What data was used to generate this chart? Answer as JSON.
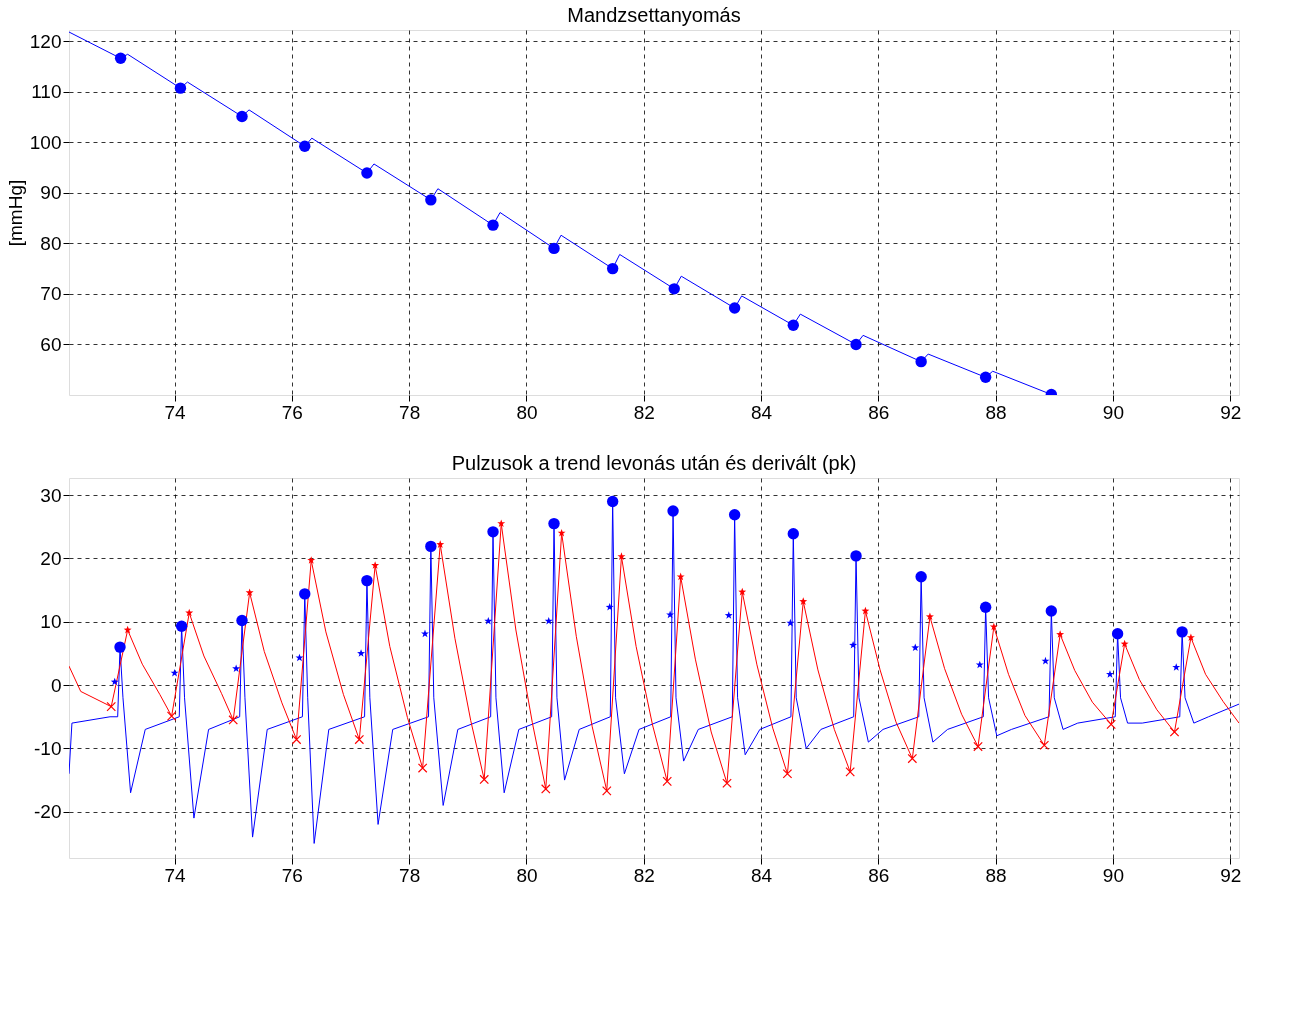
{
  "chart_data": [
    {
      "type": "line",
      "title": "Mandzsettanyomás",
      "ylabel": "[mmHg]",
      "xlim": [
        72.2,
        92.15
      ],
      "ylim": [
        50,
        122.2
      ],
      "xticks": [
        74,
        76,
        78,
        80,
        82,
        84,
        86,
        88,
        90,
        92
      ],
      "yticks": [
        60,
        70,
        80,
        90,
        100,
        110,
        120
      ],
      "grid": true,
      "series": [
        {
          "type": "line",
          "marker": "none",
          "color": "#0000ff",
          "x": [
            72.2,
            73.08,
            73.2,
            74.1,
            74.22,
            75.15,
            75.27,
            76.22,
            76.34,
            77.28,
            77.4,
            78.37,
            78.49,
            79.43,
            79.55,
            80.47,
            80.59,
            81.47,
            81.59,
            82.52,
            82.64,
            83.55,
            83.67,
            84.55,
            84.67,
            85.62,
            85.74,
            86.73,
            86.85,
            87.83,
            87.95,
            88.95
          ],
          "values": [
            121.8,
            116.6,
            117.4,
            110.7,
            111.9,
            105.1,
            106.4,
            99.2,
            100.8,
            93.9,
            95.7,
            88.6,
            90.8,
            83.6,
            86.1,
            79.0,
            81.6,
            75.0,
            77.8,
            71.0,
            73.5,
            67.2,
            69.6,
            63.8,
            66.0,
            60.0,
            61.8,
            56.6,
            58.1,
            53.5,
            54.7,
            50.1
          ]
        },
        {
          "type": "scatter",
          "marker": "circle",
          "color": "#0000ff",
          "x": [
            73.08,
            74.1,
            75.15,
            76.22,
            77.28,
            78.37,
            79.43,
            80.47,
            81.47,
            82.52,
            83.55,
            84.55,
            85.62,
            86.73,
            87.83,
            88.95
          ],
          "values": [
            116.6,
            110.7,
            105.1,
            99.2,
            93.9,
            88.6,
            83.6,
            79.0,
            75.0,
            71.0,
            67.2,
            63.8,
            60.0,
            56.6,
            53.5,
            50.1
          ]
        }
      ]
    },
    {
      "type": "line",
      "title": "Pulzusok a trend levonás után és derivált (pk)",
      "xlim": [
        72.2,
        92.15
      ],
      "ylim": [
        -27.3,
        32.7
      ],
      "xticks": [
        74,
        76,
        78,
        80,
        82,
        84,
        86,
        88,
        90,
        92
      ],
      "yticks": [
        -20,
        -10,
        0,
        10,
        20,
        30
      ],
      "grid": true,
      "series": [
        {
          "type": "line",
          "marker": "none",
          "color": "#0000ff",
          "x": [
            72.2,
            72.25,
            72.9,
            73.03,
            73.07,
            73.12,
            73.25,
            73.5,
            74.08,
            74.12,
            74.17,
            74.33,
            74.58,
            75.11,
            75.15,
            75.2,
            75.33,
            75.58,
            76.18,
            76.22,
            76.27,
            76.38,
            76.63,
            77.24,
            77.28,
            77.33,
            77.47,
            77.72,
            78.33,
            78.37,
            78.42,
            78.58,
            78.83,
            79.39,
            79.43,
            79.48,
            79.62,
            79.87,
            80.43,
            80.47,
            80.52,
            80.65,
            80.9,
            81.43,
            81.47,
            81.52,
            81.67,
            81.92,
            82.46,
            82.5,
            82.55,
            82.68,
            82.93,
            83.51,
            83.55,
            83.6,
            83.73,
            83.98,
            84.51,
            84.55,
            84.6,
            84.77,
            85.02,
            85.58,
            85.62,
            85.67,
            85.83,
            86.08,
            86.69,
            86.73,
            86.78,
            86.93,
            87.18,
            87.79,
            87.83,
            87.88,
            88.02,
            88.27,
            88.91,
            88.95,
            89.0,
            89.15,
            89.4,
            90.04,
            90.08,
            90.13,
            90.25,
            90.5,
            91.14,
            91.18,
            91.23,
            91.38,
            91.63,
            92.15
          ],
          "values": [
            -14,
            -6,
            -5,
            -5,
            6.0,
            -2,
            -17,
            -7,
            -5,
            9.3,
            -2,
            -21,
            -7,
            -5,
            10.2,
            -2,
            -24,
            -7,
            -5,
            14.4,
            -2,
            -25,
            -7,
            -5,
            16.5,
            -2,
            -22,
            -7,
            -5,
            21.9,
            -2,
            -19,
            -7,
            -5,
            24.2,
            -2,
            -17,
            -7,
            -5,
            25.5,
            -2,
            -15,
            -7,
            -5,
            29.0,
            -2,
            -14,
            -7,
            -5,
            27.5,
            -2,
            -12,
            -7,
            -5,
            26.9,
            -2,
            -11,
            -7,
            -5,
            23.9,
            -2,
            -10,
            -7,
            -5,
            20.4,
            -2,
            -9,
            -7,
            -5,
            17.1,
            -2,
            -9,
            -7,
            -5,
            12.3,
            -2,
            -8,
            -7,
            -5,
            11.7,
            -2,
            -7,
            -6,
            -5,
            8.1,
            -2,
            -6,
            -6,
            -5,
            8.4,
            -2,
            -6,
            -5,
            -3
          ]
        },
        {
          "type": "line",
          "marker": "none",
          "color": "#ff0000",
          "x": [
            72.2,
            72.4,
            72.92,
            73.2,
            73.45,
            73.75,
            73.95,
            74.25,
            74.5,
            74.8,
            75.0,
            75.28,
            75.53,
            75.83,
            76.08,
            76.33,
            76.58,
            76.88,
            77.15,
            77.42,
            77.67,
            77.97,
            78.23,
            78.53,
            78.78,
            79.05,
            79.28,
            79.57,
            79.82,
            80.1,
            80.33,
            80.6,
            80.85,
            81.12,
            81.37,
            81.62,
            81.87,
            82.15,
            82.4,
            82.63,
            82.88,
            83.15,
            83.42,
            83.68,
            83.93,
            84.2,
            84.45,
            84.72,
            84.97,
            85.25,
            85.52,
            85.78,
            86.03,
            86.3,
            86.58,
            86.88,
            87.13,
            87.42,
            87.7,
            87.97,
            88.22,
            88.5,
            88.83,
            89.1,
            89.35,
            89.65,
            89.97,
            90.2,
            90.45,
            90.75,
            91.05,
            91.33,
            91.58,
            91.88,
            92.15
          ],
          "values": [
            3,
            -1,
            -3.4,
            8.7,
            3.3,
            -1.5,
            -4.9,
            11.4,
            4.6,
            -1.3,
            -5.5,
            14.6,
            5.3,
            -2.8,
            -8.6,
            19.7,
            8.4,
            -1.5,
            -8.6,
            18.9,
            6.1,
            -5.1,
            -13.1,
            22.2,
            7.4,
            -5.6,
            -14.9,
            25.5,
            8.7,
            -5.9,
            -16.4,
            24.0,
            7.7,
            -6.5,
            -16.7,
            20.3,
            6.1,
            -6.3,
            -15.2,
            17.1,
            4.1,
            -7.4,
            -15.5,
            14.7,
            3.2,
            -6.8,
            -14.0,
            13.2,
            2.4,
            -7.0,
            -13.7,
            11.7,
            2.4,
            -5.8,
            -11.6,
            10.8,
            2.6,
            -4.6,
            -9.7,
            9.2,
            1.7,
            -4.8,
            -9.5,
            8.0,
            2.3,
            -2.7,
            -6.2,
            6.5,
            0.9,
            -3.9,
            -7.4,
            7.5,
            1.7,
            -2.6,
            -6
          ]
        },
        {
          "type": "scatter",
          "marker": "circle",
          "color": "#0000ff",
          "x": [
            73.07,
            74.12,
            75.15,
            76.22,
            77.28,
            78.37,
            79.43,
            80.47,
            81.47,
            82.5,
            83.55,
            84.55,
            85.62,
            86.73,
            87.83,
            88.95,
            90.08,
            91.18
          ],
          "values": [
            6.0,
            9.3,
            10.2,
            14.4,
            16.5,
            21.9,
            24.2,
            25.5,
            29.0,
            27.5,
            26.9,
            23.9,
            20.4,
            17.1,
            12.3,
            11.7,
            8.1,
            8.4
          ]
        },
        {
          "type": "scatter",
          "marker": "star",
          "color": "#ff0000",
          "x": [
            73.2,
            74.25,
            75.28,
            76.33,
            77.42,
            78.53,
            79.57,
            80.6,
            81.62,
            82.63,
            83.68,
            84.72,
            85.78,
            86.88,
            87.97,
            89.1,
            90.2,
            91.33
          ],
          "values": [
            8.7,
            11.4,
            14.6,
            19.7,
            18.9,
            22.2,
            25.5,
            24.0,
            20.3,
            17.1,
            14.7,
            13.2,
            11.7,
            10.8,
            9.2,
            8.0,
            6.5,
            7.5
          ]
        },
        {
          "type": "scatter",
          "marker": "cross",
          "color": "#ff0000",
          "x": [
            72.92,
            73.95,
            75.0,
            76.08,
            77.15,
            78.23,
            79.28,
            80.33,
            81.37,
            82.4,
            83.42,
            84.45,
            85.52,
            86.58,
            87.7,
            88.83,
            89.97,
            91.05
          ],
          "values": [
            -3.4,
            -4.9,
            -5.5,
            -8.6,
            -8.6,
            -13.1,
            -14.9,
            -16.4,
            -16.7,
            -15.2,
            -15.5,
            -14.0,
            -13.7,
            -11.6,
            -9.7,
            -9.5,
            -6.2,
            -7.4
          ]
        },
        {
          "type": "scatter",
          "marker": "star",
          "color": "#0000ff",
          "x": [
            72.98,
            74.0,
            75.05,
            76.13,
            77.18,
            78.27,
            79.35,
            80.38,
            81.42,
            82.45,
            83.45,
            84.5,
            85.57,
            86.63,
            87.73,
            88.85,
            89.95,
            91.08
          ],
          "values": [
            0.5,
            1.9,
            2.6,
            4.3,
            5.0,
            8.1,
            10.1,
            10.1,
            12.3,
            11.1,
            11.0,
            9.8,
            6.3,
            5.9,
            3.2,
            3.8,
            1.7,
            2.8
          ]
        }
      ]
    }
  ]
}
